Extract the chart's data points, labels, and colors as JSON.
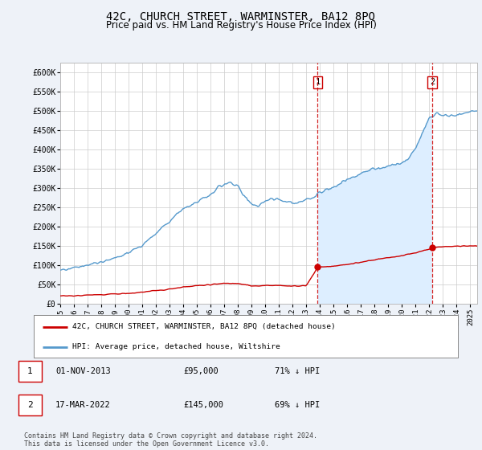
{
  "title": "42C, CHURCH STREET, WARMINSTER, BA12 8PQ",
  "subtitle": "Price paid vs. HM Land Registry's House Price Index (HPI)",
  "title_fontsize": 10,
  "subtitle_fontsize": 8.5,
  "ylabel_ticks": [
    "£0",
    "£50K",
    "£100K",
    "£150K",
    "£200K",
    "£250K",
    "£300K",
    "£350K",
    "£400K",
    "£450K",
    "£500K",
    "£550K",
    "£600K"
  ],
  "ytick_values": [
    0,
    50000,
    100000,
    150000,
    200000,
    250000,
    300000,
    350000,
    400000,
    450000,
    500000,
    550000,
    600000
  ],
  "ylim": [
    0,
    625000
  ],
  "hpi_color": "#5599cc",
  "hpi_fill_color": "#ddeeff",
  "price_color": "#cc0000",
  "marker1_price": 95000,
  "marker2_price": 145000,
  "vline_color": "#cc0000",
  "bg_color": "#eef2f8",
  "plot_bg": "#ffffff",
  "legend_label1": "42C, CHURCH STREET, WARMINSTER, BA12 8PQ (detached house)",
  "legend_label2": "HPI: Average price, detached house, Wiltshire",
  "table_entries": [
    {
      "num": "1",
      "date": "01-NOV-2013",
      "price": "£95,000",
      "pct": "71% ↓ HPI"
    },
    {
      "num": "2",
      "date": "17-MAR-2022",
      "price": "£145,000",
      "pct": "69% ↓ HPI"
    }
  ],
  "footer": "Contains HM Land Registry data © Crown copyright and database right 2024.\nThis data is licensed under the Open Government Licence v3.0.",
  "m1_x": 2013.833,
  "m2_x": 2022.208,
  "xstart": 1995.0,
  "xend": 2025.5,
  "xtick_years": [
    1995,
    1996,
    1997,
    1998,
    1999,
    2000,
    2001,
    2002,
    2003,
    2004,
    2005,
    2006,
    2007,
    2008,
    2009,
    2010,
    2011,
    2012,
    2013,
    2014,
    2015,
    2016,
    2017,
    2018,
    2019,
    2020,
    2021,
    2022,
    2023,
    2024,
    2025
  ]
}
